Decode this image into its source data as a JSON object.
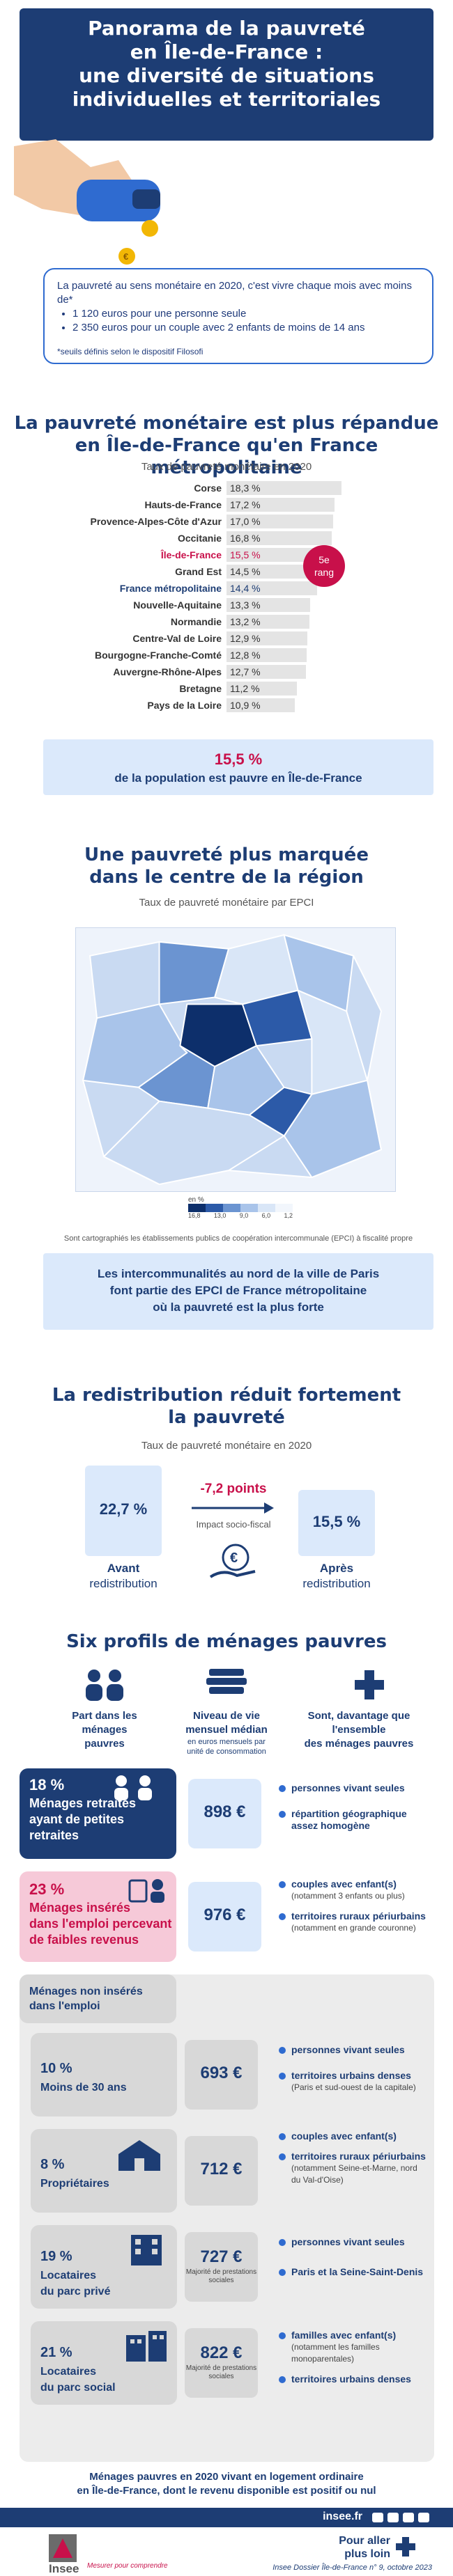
{
  "header": {
    "title_line1": "Panorama de la pauvreté",
    "title_line2": "en Île-de-France :",
    "title_line3": "une diversité de situations",
    "title_line4": "individuelles et territoriales"
  },
  "definition": {
    "intro": "La pauvreté au sens monétaire en 2020, c'est vivre chaque mois avec moins de*",
    "items": [
      "1 120 euros pour une personne seule",
      "2 350 euros pour un couple avec 2 enfants de moins de 14 ans"
    ],
    "note": "*seuils définis selon le dispositif Filosofi",
    "coin_symbol": "€"
  },
  "section1": {
    "title_line1": "La pauvreté monétaire est plus répandue",
    "title_line2": "en Île-de-France qu'en France métropolitaine",
    "subtitle": "Taux de pauvreté monétaire en 2020",
    "badge_line1": "5e",
    "badge_line2": "rang",
    "highlight_color": "#c8104a",
    "fr_color": "#1d3d74"
  },
  "chart_data": {
    "type": "bar",
    "categories": [
      "Corse",
      "Hauts-de-France",
      "Provence-Alpes-Côte d'Azur",
      "Occitanie",
      "Île-de-France",
      "Grand Est",
      "France métropolitaine",
      "Nouvelle-Aquitaine",
      "Normandie",
      "Centre-Val de Loire",
      "Bourgogne-Franche-Comté",
      "Auvergne-Rhône-Alpes",
      "Bretagne",
      "Pays de la Loire"
    ],
    "values": [
      18.3,
      17.2,
      17.0,
      16.8,
      15.5,
      14.5,
      14.4,
      13.3,
      13.2,
      12.9,
      12.8,
      12.7,
      11.2,
      10.9
    ],
    "labels": [
      "18,3 %",
      "17,2 %",
      "17,0 %",
      "16,8 %",
      "15,5 %",
      "14,5 %",
      "14,4 %",
      "13,3 %",
      "13,2 %",
      "12,9 %",
      "12,8 %",
      "12,7 %",
      "11,2 %",
      "10,9 %"
    ],
    "title": "Taux de pauvreté monétaire en 2020",
    "xlim": [
      0,
      20
    ],
    "grid": false
  },
  "band1": {
    "value": "15,5 %",
    "text": "de la population est pauvre en Île-de-France"
  },
  "section2": {
    "title_line1": "Une pauvreté plus marquée",
    "title_line2": "dans le centre de la région",
    "subtitle": "Taux de pauvreté monétaire par EPCI",
    "legend_unit": "en %",
    "legend_ticks": [
      "",
      "16,8",
      "13,0",
      "9,0",
      "6,0",
      "1,2"
    ],
    "legend_colors": [
      "#0d2f6b",
      "#2c5aa8",
      "#6b94d1",
      "#a9c4ea",
      "#d9e6f7",
      "#f2f6fc"
    ],
    "note": "Sont cartographiés les établissements publics de coopération intercommunale (EPCI) à fiscalité propre"
  },
  "band2": {
    "line1": "Les intercommunalités au nord de la ville de Paris",
    "line2": "font partie des EPCI de France métropolitaine",
    "line3": "où la pauvreté est la plus forte"
  },
  "section3": {
    "title_line1": "La redistribution réduit fortement",
    "title_line2": "la pauvreté",
    "subtitle": "Taux de pauvreté monétaire en 2020",
    "before_value": "22,7 %",
    "before_label_line1": "Avant",
    "before_label_line2": "redistribution",
    "delta": "-7,2 points",
    "delta_label": "Impact socio-fiscal",
    "after_value": "15,5 %",
    "after_label_line1": "Après",
    "after_label_line2": "redistribution",
    "euro_symbol": "€"
  },
  "section4": {
    "title": "Six profils de ménages pauvres",
    "col1_line1": "Part dans les",
    "col1_line2": "ménages",
    "col1_line3": "pauvres",
    "col2_line1": "Niveau de vie",
    "col2_line2": "mensuel médian",
    "col2_line3": "en euros mensuels par",
    "col2_line4": "unité de consommation",
    "col3_line1": "Sont, davantage que",
    "col3_line2": "l'ensemble",
    "col3_line3": "des ménages pauvres",
    "non_insered_line1": "Ménages non insérés",
    "non_insered_line2": "dans l'emploi",
    "note_prestations": "Majorité de prestations sociales",
    "profiles": [
      {
        "pct": "18 %",
        "label_line1": "Ménages retraités",
        "label_line2": "ayant de petites",
        "label_line3": "retraites",
        "median": "898 €",
        "char1": "personnes vivant seules",
        "char1_sub": "",
        "char2": "répartition géographique assez homogène",
        "char2_sub": ""
      },
      {
        "pct": "23 %",
        "label_line1": "Ménages insérés",
        "label_line2": "dans l'emploi percevant",
        "label_line3": "de faibles revenus",
        "median": "976 €",
        "char1": "couples avec enfant(s)",
        "char1_sub": "(notamment 3 enfants ou plus)",
        "char2": "territoires ruraux périurbains",
        "char2_sub": "(notamment en grande couronne)"
      },
      {
        "pct": "10 %",
        "label_line1": "Moins de 30 ans",
        "label_line2": "",
        "label_line3": "",
        "median": "693 €",
        "char1": "personnes vivant seules",
        "char1_sub": "",
        "char2": "territoires urbains denses",
        "char2_sub": "(Paris et sud-ouest de la capitale)"
      },
      {
        "pct": "8 %",
        "label_line1": "Propriétaires",
        "label_line2": "",
        "label_line3": "",
        "median": "712 €",
        "char1": "couples avec enfant(s)",
        "char1_sub": "",
        "char2": "territoires ruraux périurbains",
        "char2_sub": "(notamment Seine-et-Marne, nord du Val-d'Oise)"
      },
      {
        "pct": "19 %",
        "label_line1": "Locataires",
        "label_line2": "du parc privé",
        "label_line3": "",
        "median": "727 €",
        "char1": "personnes vivant seules",
        "char1_sub": "",
        "char2": "Paris et la Seine-Saint-Denis",
        "char2_sub": ""
      },
      {
        "pct": "21 %",
        "label_line1": "Locataires",
        "label_line2": "du parc social",
        "label_line3": "",
        "median": "822 €",
        "char1": "familles avec enfant(s)",
        "char1_sub": "(notamment les familles monoparentales)",
        "char2": "territoires urbains denses",
        "char2_sub": ""
      }
    ]
  },
  "closing": {
    "line1": "Ménages pauvres en 2020 vivant en logement ordinaire",
    "line2": "en Île-de-France, dont le revenu disponible est positif ou nul"
  },
  "footer": {
    "url": "insee.fr",
    "logo": "Insee",
    "tagline": "Mesurer pour comprendre",
    "further_line1": "Pour aller",
    "further_line2": "plus loin",
    "ref": "Insee Dossier Île-de-France n° 9, octobre 2023"
  }
}
